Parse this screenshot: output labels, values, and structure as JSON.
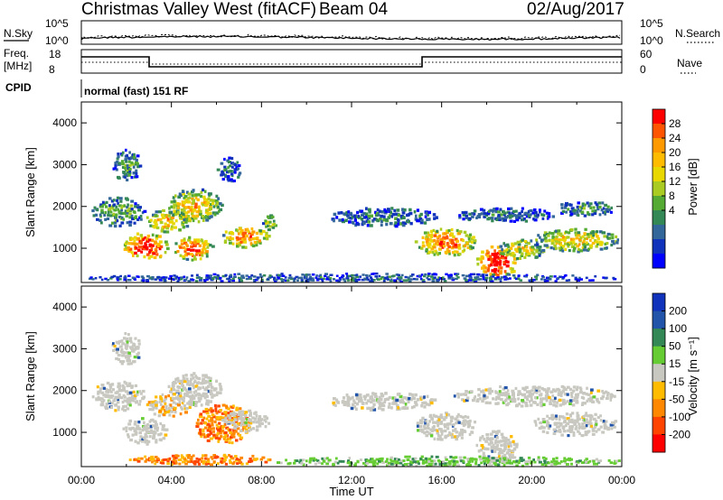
{
  "header": {
    "station": "Christmas Valley West (fitACF)",
    "beam": "Beam 04",
    "date": "02/Aug/2017"
  },
  "noise_panel": {
    "left_label": "N.Sky",
    "right_label": "N.Search",
    "left_ticks": [
      "10^5",
      "10^0"
    ],
    "right_ticks": [
      "10^5",
      "10^0"
    ]
  },
  "freq_panel": {
    "left_label_1": "Freq.",
    "left_label_2": "[MHz]",
    "right_label": "Nave",
    "left_ticks": [
      "18",
      "8"
    ],
    "right_ticks": [
      "60",
      "0"
    ]
  },
  "cpid": {
    "label": "CPID",
    "text": "normal (fast) 151 RF"
  },
  "chart_data": [
    {
      "type": "heatmap",
      "name": "power",
      "ylabel": "Slant Range [km]",
      "ylim": [
        180,
        4500
      ],
      "xlim_hours": [
        0,
        24
      ],
      "yticks": [
        "4000",
        "3000",
        "2000",
        "1000"
      ],
      "colorbar": {
        "label": "Power [dB]",
        "ticks": [
          "28",
          "24",
          "20",
          "16",
          "12",
          "8",
          "4"
        ],
        "colors": [
          "#ff0000",
          "#ff5500",
          "#ff9900",
          "#ffbb00",
          "#e8d800",
          "#aacc22",
          "#55aa33",
          "#338855",
          "#336699",
          "#1133bb",
          "#0000ff"
        ]
      },
      "regions": [
        {
          "t": [
            0.4,
            2.8
          ],
          "r": [
            1550,
            2250
          ],
          "level": 0.35
        },
        {
          "t": [
            1.3,
            2.6
          ],
          "r": [
            2650,
            3400
          ],
          "level": 0.3
        },
        {
          "t": [
            1.8,
            3.8
          ],
          "r": [
            750,
            1400
          ],
          "level": 0.9
        },
        {
          "t": [
            2.8,
            4.8
          ],
          "r": [
            1400,
            1950
          ],
          "level": 0.65
        },
        {
          "t": [
            3.8,
            6.2
          ],
          "r": [
            1650,
            2450
          ],
          "level": 0.6
        },
        {
          "t": [
            4.0,
            5.8
          ],
          "r": [
            750,
            1300
          ],
          "level": 0.85
        },
        {
          "t": [
            6.2,
            8.3
          ],
          "r": [
            1050,
            1550
          ],
          "level": 0.75
        },
        {
          "t": [
            8.0,
            8.6
          ],
          "r": [
            1450,
            1850
          ],
          "level": 0.5
        },
        {
          "t": [
            6.0,
            7.0
          ],
          "r": [
            2600,
            3200
          ],
          "level": 0.25
        },
        {
          "t": [
            11.0,
            15.8
          ],
          "r": [
            1550,
            2000
          ],
          "level": 0.25
        },
        {
          "t": [
            14.8,
            17.5
          ],
          "r": [
            850,
            1500
          ],
          "level": 0.8
        },
        {
          "t": [
            17.5,
            19.3
          ],
          "r": [
            300,
            1100
          ],
          "level": 0.95
        },
        {
          "t": [
            18.5,
            20.5
          ],
          "r": [
            750,
            1250
          ],
          "level": 0.55
        },
        {
          "t": [
            20.0,
            23.8
          ],
          "r": [
            950,
            1500
          ],
          "level": 0.6
        },
        {
          "t": [
            16.5,
            21.0
          ],
          "r": [
            1650,
            2000
          ],
          "level": 0.25
        },
        {
          "t": [
            21.0,
            23.7
          ],
          "r": [
            1800,
            2150
          ],
          "level": 0.3
        },
        {
          "t": [
            0.1,
            24.0
          ],
          "r": [
            200,
            420
          ],
          "level": 0.2
        }
      ]
    },
    {
      "type": "heatmap",
      "name": "velocity",
      "ylabel": "Slant Range [km]",
      "xlabel": "Time UT",
      "ylim": [
        180,
        4500
      ],
      "xlim_hours": [
        0,
        24
      ],
      "yticks": [
        "4000",
        "3000",
        "2000",
        "1000"
      ],
      "xticks": [
        "00:00",
        "04:00",
        "08:00",
        "12:00",
        "16:00",
        "20:00",
        "00:00"
      ],
      "colorbar": {
        "label": "Velocity [m s⁻¹]",
        "ticks": [
          "200",
          "100",
          "50",
          "15",
          "-15",
          "-50",
          "-100",
          "-200"
        ],
        "colors": [
          "#1133bb",
          "#2255aa",
          "#338855",
          "#66cc33",
          "#c8c8c0",
          "#ffbb00",
          "#ff8800",
          "#ff4400",
          "#ff0000"
        ]
      },
      "regions": [
        {
          "t": [
            0.4,
            2.8
          ],
          "r": [
            1550,
            2250
          ],
          "level": 0.5
        },
        {
          "t": [
            1.3,
            2.6
          ],
          "r": [
            2650,
            3400
          ],
          "level": 0.5
        },
        {
          "t": [
            1.8,
            3.8
          ],
          "r": [
            750,
            1400
          ],
          "level": 0.5
        },
        {
          "t": [
            2.8,
            4.8
          ],
          "r": [
            1400,
            1950
          ],
          "level": 0.7
        },
        {
          "t": [
            3.8,
            6.2
          ],
          "r": [
            1650,
            2450
          ],
          "level": 0.5
        },
        {
          "t": [
            5.0,
            7.5
          ],
          "r": [
            750,
            1700
          ],
          "level": 0.85
        },
        {
          "t": [
            6.2,
            8.3
          ],
          "r": [
            1050,
            1550
          ],
          "level": 0.5
        },
        {
          "t": [
            11.0,
            15.8
          ],
          "r": [
            1550,
            2000
          ],
          "level": 0.5
        },
        {
          "t": [
            14.8,
            17.5
          ],
          "r": [
            850,
            1500
          ],
          "level": 0.5
        },
        {
          "t": [
            17.5,
            19.3
          ],
          "r": [
            300,
            1100
          ],
          "level": 0.5
        },
        {
          "t": [
            20.0,
            23.8
          ],
          "r": [
            950,
            1500
          ],
          "level": 0.5
        },
        {
          "t": [
            16.5,
            23.7
          ],
          "r": [
            1650,
            2150
          ],
          "level": 0.5
        },
        {
          "t": [
            2.0,
            8.5
          ],
          "r": [
            250,
            500
          ],
          "level": 0.95
        },
        {
          "t": [
            8.5,
            24.0
          ],
          "r": [
            200,
            450
          ],
          "level": 0.3
        }
      ]
    }
  ]
}
